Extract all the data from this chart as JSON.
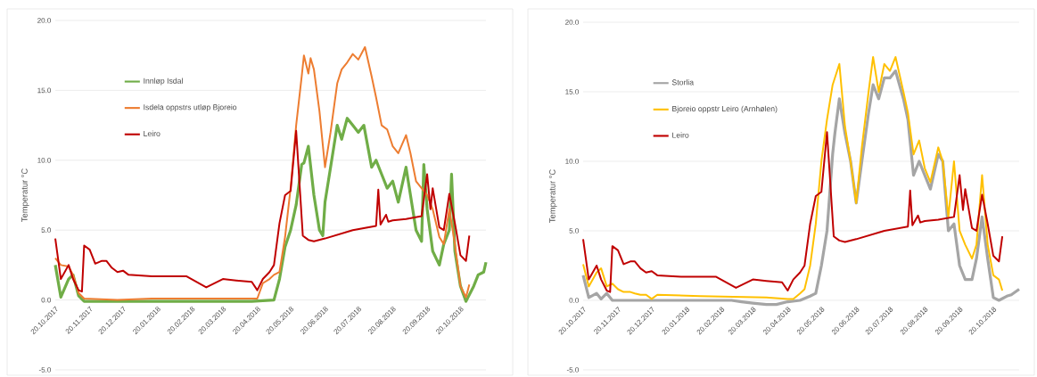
{
  "chart_data": [
    {
      "type": "line",
      "ylabel": "Temperatur °C",
      "grid": "y",
      "legend": "top left",
      "marker": "none",
      "line_style": "solid",
      "xlim": [
        "2017-10-20",
        "2018-11-12"
      ],
      "ylim": [
        -5,
        20
      ],
      "yticks": [
        {
          "value": -5,
          "label": "-5.0"
        },
        {
          "value": 0,
          "label": "0.0"
        },
        {
          "value": 5,
          "label": "5.0"
        },
        {
          "value": 10,
          "label": "10.0"
        },
        {
          "value": 15,
          "label": "15.0"
        },
        {
          "value": 20,
          "label": "20.0"
        }
      ],
      "xticks": [
        {
          "value": "2017-10-20",
          "label": "20.10.2017"
        },
        {
          "value": "2017-11-20",
          "label": "20.11.2017"
        },
        {
          "value": "2017-12-20",
          "label": "20.12.2017"
        },
        {
          "value": "2018-01-20",
          "label": "20.01.2018"
        },
        {
          "value": "2018-02-20",
          "label": "20.02.2018"
        },
        {
          "value": "2018-03-20",
          "label": "20.03.2018"
        },
        {
          "value": "2018-04-20",
          "label": "20.04.2018"
        },
        {
          "value": "2018-05-20",
          "label": "20.05.2018"
        },
        {
          "value": "2018-06-20",
          "label": "20.06.2018"
        },
        {
          "value": "2018-07-20",
          "label": "20.07.2018"
        },
        {
          "value": "2018-08-20",
          "label": "20.08.2018"
        },
        {
          "value": "2018-09-20",
          "label": "20.09.2018"
        },
        {
          "value": "2018-10-20",
          "label": "20.10.2018"
        }
      ],
      "series": [
        {
          "name": "Innløp Isdal",
          "color": "#70ad47",
          "x": [
            "2017-10-20",
            "2017-10-25",
            "2017-11-01",
            "2017-11-05",
            "2017-11-10",
            "2017-11-15",
            "2017-12-15",
            "2018-01-15",
            "2018-02-15",
            "2018-03-15",
            "2018-04-15",
            "2018-05-05",
            "2018-05-10",
            "2018-05-15",
            "2018-05-20",
            "2018-05-25",
            "2018-05-30",
            "2018-06-01",
            "2018-06-05",
            "2018-06-10",
            "2018-06-15",
            "2018-06-18",
            "2018-06-20",
            "2018-06-25",
            "2018-07-01",
            "2018-07-05",
            "2018-07-10",
            "2018-07-15",
            "2018-07-20",
            "2018-07-25",
            "2018-08-01",
            "2018-08-05",
            "2018-08-10",
            "2018-08-15",
            "2018-08-20",
            "2018-08-25",
            "2018-09-01",
            "2018-09-05",
            "2018-09-10",
            "2018-09-15",
            "2018-09-17",
            "2018-09-20",
            "2018-09-25",
            "2018-10-01",
            "2018-10-05",
            "2018-10-10",
            "2018-10-12",
            "2018-10-15",
            "2018-10-20",
            "2018-10-25",
            "2018-11-01",
            "2018-11-05",
            "2018-11-10",
            "2018-11-12"
          ],
          "values": [
            2.5,
            0.2,
            1.5,
            1.8,
            0.3,
            -0.1,
            -0.1,
            -0.1,
            -0.1,
            -0.1,
            -0.1,
            0.0,
            1.5,
            3.8,
            5.0,
            6.8,
            9.7,
            9.8,
            11.0,
            7.5,
            5.0,
            4.6,
            7.0,
            9.5,
            12.5,
            11.5,
            13.0,
            12.5,
            12.0,
            12.5,
            9.5,
            10.0,
            9.0,
            8.0,
            8.5,
            7.0,
            9.5,
            7.5,
            5.0,
            4.2,
            9.7,
            6.5,
            3.5,
            2.5,
            4.0,
            5.0,
            9.0,
            3.5,
            1.0,
            -0.1,
            1.0,
            1.8,
            2.0,
            2.7
          ]
        },
        {
          "name": "Isdela oppstrs utløp Bjoreio",
          "color": "#ed7d31",
          "x": [
            "2017-10-20",
            "2017-10-25",
            "2017-11-01",
            "2017-11-05",
            "2017-11-10",
            "2017-11-15",
            "2017-12-15",
            "2018-01-15",
            "2018-02-15",
            "2018-03-15",
            "2018-04-20",
            "2018-04-25",
            "2018-05-01",
            "2018-05-05",
            "2018-05-10",
            "2018-05-15",
            "2018-05-20",
            "2018-05-25",
            "2018-05-30",
            "2018-06-01",
            "2018-06-05",
            "2018-06-07",
            "2018-06-10",
            "2018-06-15",
            "2018-06-20",
            "2018-06-25",
            "2018-07-01",
            "2018-07-05",
            "2018-07-10",
            "2018-07-15",
            "2018-07-20",
            "2018-07-26",
            "2018-08-01",
            "2018-08-05",
            "2018-08-10",
            "2018-08-15",
            "2018-08-20",
            "2018-08-25",
            "2018-09-01",
            "2018-09-05",
            "2018-09-10",
            "2018-09-15",
            "2018-09-20",
            "2018-09-25",
            "2018-10-01",
            "2018-10-05",
            "2018-10-10",
            "2018-10-15",
            "2018-10-20",
            "2018-10-25",
            "2018-10-28"
          ],
          "values": [
            3.0,
            2.5,
            2.4,
            1.8,
            0.5,
            0.1,
            0.0,
            0.1,
            0.1,
            0.1,
            0.1,
            1.2,
            1.5,
            1.8,
            2.0,
            4.5,
            8.0,
            12.5,
            16.0,
            17.5,
            16.2,
            17.3,
            16.5,
            13.5,
            9.5,
            12.0,
            15.5,
            16.5,
            17.0,
            17.6,
            17.2,
            18.1,
            16.0,
            14.5,
            12.5,
            12.2,
            11.0,
            10.5,
            11.8,
            10.5,
            8.5,
            8.0,
            7.5,
            6.5,
            4.5,
            4.0,
            6.5,
            4.0,
            1.0,
            0.2,
            1.1
          ]
        },
        {
          "name": "Leiro",
          "color": "#c00000",
          "x": [
            "2017-10-20",
            "2017-10-25",
            "2017-11-01",
            "2017-11-05",
            "2017-11-10",
            "2017-11-13",
            "2017-11-15",
            "2017-11-20",
            "2017-11-25",
            "2017-12-01",
            "2017-12-05",
            "2017-12-10",
            "2017-12-15",
            "2017-12-20",
            "2017-12-25",
            "2018-01-15",
            "2018-02-15",
            "2018-03-05",
            "2018-03-20",
            "2018-04-01",
            "2018-04-15",
            "2018-04-20",
            "2018-04-25",
            "2018-05-01",
            "2018-05-05",
            "2018-05-10",
            "2018-05-15",
            "2018-05-20",
            "2018-05-25",
            "2018-05-31",
            "2018-06-05",
            "2018-06-10",
            "2018-06-20",
            "2018-07-15",
            "2018-08-05",
            "2018-08-07",
            "2018-08-09",
            "2018-08-14",
            "2018-08-16",
            "2018-08-20",
            "2018-09-01",
            "2018-09-15",
            "2018-09-20",
            "2018-09-23",
            "2018-09-25",
            "2018-10-01",
            "2018-10-05",
            "2018-10-10",
            "2018-10-15",
            "2018-10-20",
            "2018-10-25",
            "2018-10-28"
          ],
          "values": [
            4.4,
            1.5,
            2.5,
            1.5,
            0.7,
            0.6,
            3.9,
            3.6,
            2.6,
            2.8,
            2.8,
            2.3,
            2.0,
            2.1,
            1.8,
            1.7,
            1.7,
            0.9,
            1.5,
            1.4,
            1.3,
            0.7,
            1.5,
            2.0,
            2.5,
            5.5,
            7.5,
            7.8,
            12.1,
            4.6,
            4.3,
            4.2,
            4.4,
            5.0,
            5.3,
            7.9,
            5.4,
            6.1,
            5.6,
            5.7,
            5.8,
            6.0,
            9.0,
            6.5,
            8.0,
            5.2,
            5.0,
            7.6,
            5.5,
            3.2,
            2.8,
            4.6
          ]
        }
      ]
    },
    {
      "type": "line",
      "ylabel": "Temperatur °C",
      "grid": "y",
      "legend": "top left",
      "marker": "none",
      "line_style": "solid",
      "xlim": [
        "2017-10-20",
        "2018-11-12"
      ],
      "ylim": [
        -5,
        20
      ],
      "yticks": [
        {
          "value": -5,
          "label": "-5.0"
        },
        {
          "value": 0,
          "label": "0.0"
        },
        {
          "value": 5,
          "label": "5.0"
        },
        {
          "value": 10,
          "label": "10.0"
        },
        {
          "value": 15,
          "label": "15.0"
        },
        {
          "value": 20,
          "label": "20.0"
        }
      ],
      "xticks": [
        {
          "value": "2017-10-20",
          "label": "20.10.2017"
        },
        {
          "value": "2017-11-20",
          "label": "20.11.2017"
        },
        {
          "value": "2017-12-20",
          "label": "20.12.2017"
        },
        {
          "value": "2018-01-20",
          "label": "20.01.2018"
        },
        {
          "value": "2018-02-20",
          "label": "20.02.2018"
        },
        {
          "value": "2018-03-20",
          "label": "20.03.2018"
        },
        {
          "value": "2018-04-20",
          "label": "20.04.2018"
        },
        {
          "value": "2018-05-20",
          "label": "20.05.2018"
        },
        {
          "value": "2018-06-20",
          "label": "20.06.2018"
        },
        {
          "value": "2018-07-20",
          "label": "20.07.2018"
        },
        {
          "value": "2018-08-20",
          "label": "20.08.2018"
        },
        {
          "value": "2018-09-20",
          "label": "20.09.2018"
        },
        {
          "value": "2018-10-20",
          "label": "20.10.2018"
        }
      ],
      "series": [
        {
          "name": "Storlia",
          "color": "#a5a5a5",
          "x": [
            "2017-10-20",
            "2017-10-25",
            "2017-11-01",
            "2017-11-05",
            "2017-11-10",
            "2017-11-15",
            "2018-01-15",
            "2018-03-01",
            "2018-03-10",
            "2018-03-20",
            "2018-04-01",
            "2018-04-10",
            "2018-04-20",
            "2018-05-01",
            "2018-05-10",
            "2018-05-15",
            "2018-05-20",
            "2018-05-25",
            "2018-05-30",
            "2018-06-01",
            "2018-06-05",
            "2018-06-10",
            "2018-06-15",
            "2018-06-20",
            "2018-06-25",
            "2018-07-01",
            "2018-07-05",
            "2018-07-10",
            "2018-07-15",
            "2018-07-20",
            "2018-07-25",
            "2018-08-01",
            "2018-08-05",
            "2018-08-10",
            "2018-08-15",
            "2018-08-20",
            "2018-08-25",
            "2018-09-01",
            "2018-09-05",
            "2018-09-10",
            "2018-09-15",
            "2018-09-20",
            "2018-09-25",
            "2018-10-01",
            "2018-10-05",
            "2018-10-10",
            "2018-10-15",
            "2018-10-20",
            "2018-10-25",
            "2018-11-01",
            "2018-11-05",
            "2018-11-12"
          ],
          "values": [
            1.8,
            0.2,
            0.5,
            0.1,
            0.5,
            0.0,
            0.0,
            0.0,
            -0.1,
            -0.2,
            -0.3,
            -0.3,
            -0.1,
            0.0,
            0.3,
            0.5,
            2.5,
            5.0,
            10.5,
            12.0,
            14.5,
            12.0,
            10.0,
            7.0,
            10.0,
            13.5,
            15.5,
            14.5,
            16.0,
            16.0,
            16.5,
            14.5,
            13.0,
            9.0,
            10.0,
            9.0,
            8.0,
            10.5,
            10.0,
            5.0,
            5.5,
            2.5,
            1.5,
            1.5,
            3.0,
            6.0,
            3.0,
            0.2,
            0.0,
            0.3,
            0.4,
            0.8
          ]
        },
        {
          "name": "Bjoreio oppstr Leiro (Arnhølen)",
          "color": "#ffc000",
          "x": [
            "2017-10-20",
            "2017-10-25",
            "2017-11-01",
            "2017-11-05",
            "2017-11-10",
            "2017-11-15",
            "2017-11-20",
            "2017-11-25",
            "2017-12-01",
            "2017-12-05",
            "2017-12-10",
            "2017-12-15",
            "2017-12-20",
            "2017-12-25",
            "2018-02-01",
            "2018-04-01",
            "2018-04-20",
            "2018-04-25",
            "2018-05-01",
            "2018-05-05",
            "2018-05-10",
            "2018-05-15",
            "2018-05-20",
            "2018-05-25",
            "2018-05-30",
            "2018-06-01",
            "2018-06-05",
            "2018-06-10",
            "2018-06-15",
            "2018-06-20",
            "2018-06-25",
            "2018-07-01",
            "2018-07-05",
            "2018-07-10",
            "2018-07-15",
            "2018-07-20",
            "2018-07-25",
            "2018-08-01",
            "2018-08-05",
            "2018-08-10",
            "2018-08-15",
            "2018-08-20",
            "2018-08-25",
            "2018-09-01",
            "2018-09-05",
            "2018-09-10",
            "2018-09-15",
            "2018-09-20",
            "2018-09-25",
            "2018-10-01",
            "2018-10-05",
            "2018-10-10",
            "2018-10-15",
            "2018-10-20",
            "2018-10-25",
            "2018-10-28"
          ],
          "values": [
            2.6,
            1.0,
            2.0,
            2.3,
            1.0,
            1.2,
            0.8,
            0.6,
            0.6,
            0.5,
            0.4,
            0.4,
            0.1,
            0.4,
            0.3,
            0.2,
            0.1,
            0.1,
            0.5,
            0.8,
            2.5,
            5.5,
            10.0,
            13.0,
            15.5,
            16.0,
            17.0,
            12.5,
            10.0,
            7.0,
            11.0,
            15.0,
            17.5,
            15.0,
            17.0,
            16.5,
            17.5,
            15.0,
            13.5,
            10.5,
            11.5,
            9.5,
            8.5,
            11.0,
            10.0,
            6.0,
            10.0,
            5.0,
            4.0,
            3.0,
            4.0,
            9.0,
            4.0,
            1.8,
            1.5,
            0.7
          ]
        },
        {
          "name": "Leiro",
          "color": "#c00000",
          "x": [
            "2017-10-20",
            "2017-10-25",
            "2017-11-01",
            "2017-11-05",
            "2017-11-10",
            "2017-11-13",
            "2017-11-15",
            "2017-11-20",
            "2017-11-25",
            "2017-12-01",
            "2017-12-05",
            "2017-12-10",
            "2017-12-15",
            "2017-12-20",
            "2017-12-25",
            "2018-01-15",
            "2018-02-15",
            "2018-03-05",
            "2018-03-20",
            "2018-04-01",
            "2018-04-15",
            "2018-04-20",
            "2018-04-25",
            "2018-05-01",
            "2018-05-05",
            "2018-05-10",
            "2018-05-15",
            "2018-05-20",
            "2018-05-25",
            "2018-05-31",
            "2018-06-05",
            "2018-06-10",
            "2018-06-20",
            "2018-07-15",
            "2018-08-05",
            "2018-08-07",
            "2018-08-09",
            "2018-08-14",
            "2018-08-16",
            "2018-08-20",
            "2018-09-01",
            "2018-09-15",
            "2018-09-20",
            "2018-09-23",
            "2018-09-25",
            "2018-10-01",
            "2018-10-05",
            "2018-10-10",
            "2018-10-15",
            "2018-10-20",
            "2018-10-25",
            "2018-10-28"
          ],
          "values": [
            4.4,
            1.5,
            2.5,
            1.5,
            0.7,
            0.6,
            3.9,
            3.6,
            2.6,
            2.8,
            2.8,
            2.3,
            2.0,
            2.1,
            1.8,
            1.7,
            1.7,
            0.9,
            1.5,
            1.4,
            1.3,
            0.7,
            1.5,
            2.0,
            2.5,
            5.5,
            7.5,
            7.8,
            12.1,
            4.6,
            4.3,
            4.2,
            4.4,
            5.0,
            5.3,
            7.9,
            5.4,
            6.1,
            5.6,
            5.7,
            5.8,
            6.0,
            9.0,
            6.5,
            8.0,
            5.2,
            5.0,
            7.6,
            5.5,
            3.2,
            2.8,
            4.6
          ]
        }
      ]
    }
  ]
}
